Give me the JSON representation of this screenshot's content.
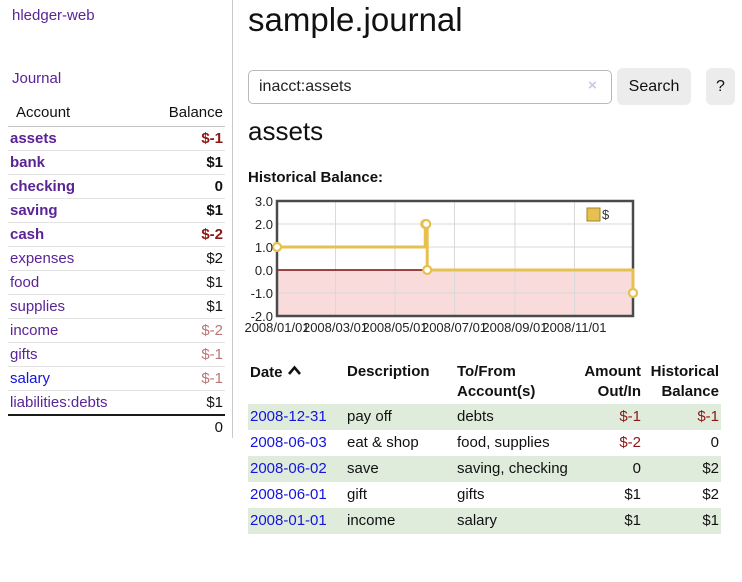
{
  "app_title": "hledger-web",
  "sidebar": {
    "journal_link": "Journal",
    "account_header": "Account",
    "balance_header": "Balance",
    "accounts": [
      {
        "name": "assets",
        "balance": "$-1",
        "level": 1,
        "selected": true
      },
      {
        "name": "bank",
        "balance": "$1",
        "level": 2,
        "selected": true
      },
      {
        "name": "checking",
        "balance": "0",
        "level": 3,
        "selected": true
      },
      {
        "name": "saving",
        "balance": "$1",
        "level": 3,
        "selected": true
      },
      {
        "name": "cash",
        "balance": "$-2",
        "level": 2,
        "selected": true
      },
      {
        "name": "expenses",
        "balance": "$2",
        "level": 1,
        "selected": false
      },
      {
        "name": "food",
        "balance": "$1",
        "level": 2,
        "selected": false
      },
      {
        "name": "supplies",
        "balance": "$1",
        "level": 2,
        "selected": false
      },
      {
        "name": "income",
        "balance": "$-2",
        "level": 1,
        "selected": false
      },
      {
        "name": "gifts",
        "balance": "$-1",
        "level": 2,
        "selected": false
      },
      {
        "name": "salary",
        "balance": "$-1",
        "level": 2,
        "selected": false,
        "unvisited": true
      },
      {
        "name": "liabilities:debts",
        "balance": "$1",
        "level": 1,
        "selected": false
      }
    ],
    "total": "0"
  },
  "main": {
    "title": "sample.journal",
    "search": {
      "value": "inacct:assets",
      "clear": "×",
      "button": "Search",
      "help": "?"
    },
    "account_title": "assets",
    "chart_heading": "Historical Balance:"
  },
  "chart_data": {
    "type": "line",
    "title": "Historical Balance of assets",
    "step": true,
    "series": [
      {
        "name": "$",
        "x": [
          "2008-01-01",
          "2008-06-01",
          "2008-06-02",
          "2008-06-03",
          "2008-12-31"
        ],
        "y": [
          1,
          2,
          2,
          0,
          -1
        ]
      }
    ],
    "x_range": [
      "2008-01-01",
      "2008-12-31"
    ],
    "ylim": [
      -2,
      3
    ],
    "y_ticks": [
      3,
      2,
      1,
      0,
      -1,
      -2
    ],
    "y_tick_labels": [
      "3.0",
      "2.0",
      "1.0",
      "0.0",
      "-1.0",
      "-2.0"
    ],
    "x_ticks": [
      "2008/01/01",
      "2008/03/01",
      "2008/05/01",
      "2008/07/01",
      "2008/09/01",
      "2008/11/01"
    ],
    "legend": "$",
    "legend_position": "top-right",
    "grid": true,
    "colors": {
      "line": "#e6c151",
      "marker_fill": "#ffffff",
      "negative_area": "#f9dbdb",
      "zero_line": "#7c0a0a",
      "grid": "#d9d9d9",
      "border": "#4a4a4a"
    }
  },
  "register": {
    "headers": {
      "date": "Date",
      "description": "Description",
      "accounts": "To/From Account(s)",
      "amount": "Amount Out/In",
      "balance": "Historical Balance"
    },
    "sort_column": "date",
    "rows": [
      {
        "date": "2008-12-31",
        "description": "pay off",
        "accounts": "debts",
        "amount": "$-1",
        "balance": "$-1"
      },
      {
        "date": "2008-06-03",
        "description": "eat & shop",
        "accounts": "food, supplies",
        "amount": "$-2",
        "balance": "0"
      },
      {
        "date": "2008-06-02",
        "description": "save",
        "accounts": "saving, checking",
        "amount": "0",
        "balance": "$2"
      },
      {
        "date": "2008-06-01",
        "description": "gift",
        "accounts": "gifts",
        "amount": "$1",
        "balance": "$2"
      },
      {
        "date": "2008-01-01",
        "description": "income",
        "accounts": "salary",
        "amount": "$1",
        "balance": "$1"
      }
    ]
  }
}
